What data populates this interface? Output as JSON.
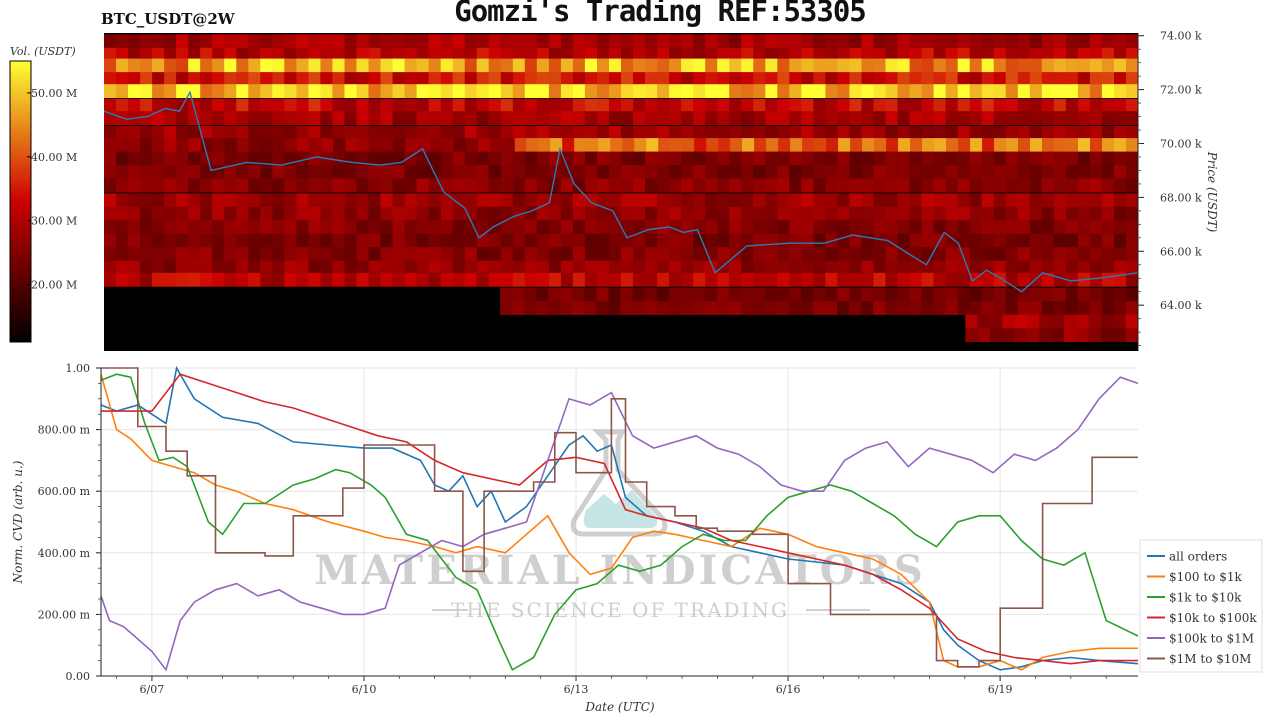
{
  "header": {
    "title": "Gomzi's Trading REF:53305",
    "pair": "BTC_USDT@2W"
  },
  "colors": {
    "heat_low": "#000000",
    "heat_mid": "#cc0000",
    "heat_high": "#ffff33",
    "price_line": "#2b7bba",
    "background": "#ffffff"
  },
  "watermark": {
    "brand": "MATERIAL INDICATORS",
    "tagline": "THE SCIENCE OF TRADING"
  },
  "chart_data": [
    {
      "type": "heatmap",
      "title": "BTC_USDT@2W",
      "colorbar": {
        "label": "Vol. (USDT)",
        "ticks": [
          "20.00 M",
          "30.00 M",
          "40.00 M",
          "50.00 M"
        ],
        "tick_values": [
          20,
          30,
          40,
          50
        ],
        "range": [
          11,
          55
        ]
      },
      "ylabel": "Price (USDT)",
      "yticks": [
        "64.00 k",
        "66.00 k",
        "68.00 k",
        "70.00 k",
        "72.00 k",
        "74.00 k"
      ],
      "ytick_values": [
        64000,
        66000,
        68000,
        70000,
        72000,
        74000
      ],
      "ylim": [
        62300,
        74100
      ],
      "xlim": [
        6.28,
        20.95
      ],
      "heat_bands": [
        {
          "price": 73800,
          "intensity": 0.4,
          "x_from": 6.28,
          "x_to": 20.95
        },
        {
          "price": 73300,
          "intensity": 0.45,
          "x_from": 6.28,
          "x_to": 20.95
        },
        {
          "price": 72900,
          "intensity": 0.82,
          "x_from": 6.28,
          "x_to": 20.95
        },
        {
          "price": 72400,
          "intensity": 0.52,
          "x_from": 6.28,
          "x_to": 20.95
        },
        {
          "price": 71950,
          "intensity": 0.93,
          "x_from": 6.28,
          "x_to": 20.95
        },
        {
          "price": 71400,
          "intensity": 0.48,
          "x_from": 6.28,
          "x_to": 20.95
        },
        {
          "price": 70950,
          "intensity": 0.4,
          "x_from": 6.28,
          "x_to": 20.95
        },
        {
          "price": 70400,
          "intensity": 0.38,
          "x_from": 6.28,
          "x_to": 20.95
        },
        {
          "price": 69950,
          "intensity": 0.7,
          "x_from": 12.1,
          "x_to": 20.95
        },
        {
          "price": 69950,
          "intensity": 0.35,
          "x_from": 6.28,
          "x_to": 12.1
        },
        {
          "price": 69450,
          "intensity": 0.3,
          "x_from": 6.28,
          "x_to": 20.95
        },
        {
          "price": 68950,
          "intensity": 0.3,
          "x_from": 6.28,
          "x_to": 20.95
        },
        {
          "price": 68450,
          "intensity": 0.33,
          "x_from": 6.28,
          "x_to": 20.95
        },
        {
          "price": 67900,
          "intensity": 0.38,
          "x_from": 6.28,
          "x_to": 20.95
        },
        {
          "price": 67400,
          "intensity": 0.35,
          "x_from": 6.28,
          "x_to": 20.95
        },
        {
          "price": 66900,
          "intensity": 0.32,
          "x_from": 6.28,
          "x_to": 20.95
        },
        {
          "price": 66400,
          "intensity": 0.3,
          "x_from": 6.28,
          "x_to": 20.95
        },
        {
          "price": 65900,
          "intensity": 0.32,
          "x_from": 6.28,
          "x_to": 20.95
        },
        {
          "price": 65400,
          "intensity": 0.35,
          "x_from": 6.28,
          "x_to": 20.95
        },
        {
          "price": 64950,
          "intensity": 0.45,
          "x_from": 6.28,
          "x_to": 20.95
        },
        {
          "price": 64400,
          "intensity": 0.28,
          "x_from": 11.9,
          "x_to": 20.95
        },
        {
          "price": 63900,
          "intensity": 0.3,
          "x_from": 11.9,
          "x_to": 20.95
        },
        {
          "price": 63400,
          "intensity": 0.4,
          "x_from": 18.5,
          "x_to": 20.95
        },
        {
          "price": 62900,
          "intensity": 0.35,
          "x_from": 18.5,
          "x_to": 20.95
        }
      ],
      "series": [
        {
          "x": [
            6.28,
            6.6,
            6.9,
            7.15,
            7.35,
            7.5,
            7.8,
            8.3,
            8.8,
            9.3,
            9.8,
            10.2,
            10.5,
            10.8,
            11.1,
            11.4,
            11.6,
            11.8,
            12.1,
            12.35,
            12.6,
            12.75,
            12.95,
            13.2,
            13.5,
            13.7,
            14.0,
            14.3,
            14.5,
            14.7,
            14.95,
            15.4,
            16.0,
            16.5,
            16.9,
            17.4,
            17.7,
            17.95,
            18.2,
            18.4,
            18.6,
            18.8,
            19.0,
            19.3,
            19.6,
            20.0,
            20.4,
            20.95
          ],
          "y": [
            71200,
            70900,
            71000,
            71300,
            71200,
            71900,
            69000,
            69300,
            69200,
            69500,
            69300,
            69200,
            69300,
            69800,
            68200,
            67600,
            66500,
            66900,
            67300,
            67500,
            67800,
            69800,
            68500,
            67800,
            67500,
            66500,
            66800,
            66900,
            66700,
            66800,
            65200,
            66200,
            66300,
            66300,
            66600,
            66400,
            65900,
            65500,
            66700,
            66300,
            64900,
            65300,
            65000,
            64500,
            65200,
            64900,
            65000,
            65200
          ],
          "name": ""
        }
      ]
    },
    {
      "type": "line",
      "ylabel": "Norm. CVD (arb. u.)",
      "xlabel": "Date (UTC)",
      "ylim": [
        0,
        1
      ],
      "xlim": [
        6.28,
        20.95
      ],
      "yticks": [
        "0.00",
        "200.00 m",
        "400.00 m",
        "600.00 m",
        "800.00 m",
        "1.00"
      ],
      "ytick_values": [
        0,
        0.2,
        0.4,
        0.6,
        0.8,
        1.0
      ],
      "xticks": [
        "6/07",
        "6/10",
        "6/13",
        "6/16",
        "6/19"
      ],
      "xtick_values": [
        7,
        10,
        13,
        16,
        19
      ],
      "grid": true,
      "legend_position": "right",
      "series": [
        {
          "name": "all orders",
          "color": "#1f77b4",
          "x": [
            6.28,
            6.5,
            6.8,
            7.0,
            7.2,
            7.35,
            7.6,
            8.0,
            8.5,
            9.0,
            9.5,
            10.0,
            10.4,
            10.8,
            11.0,
            11.2,
            11.4,
            11.6,
            11.8,
            12.0,
            12.3,
            12.6,
            12.9,
            13.1,
            13.3,
            13.5,
            13.7,
            14.0,
            14.4,
            14.8,
            15.2,
            15.6,
            16.0,
            16.4,
            16.8,
            17.2,
            17.6,
            18.0,
            18.2,
            18.4,
            18.7,
            19.0,
            19.3,
            19.6,
            20.0,
            20.4,
            20.95
          ],
          "y": [
            0.88,
            0.86,
            0.88,
            0.85,
            0.82,
            1.0,
            0.9,
            0.84,
            0.82,
            0.76,
            0.75,
            0.74,
            0.74,
            0.7,
            0.62,
            0.6,
            0.65,
            0.55,
            0.6,
            0.5,
            0.55,
            0.65,
            0.75,
            0.78,
            0.73,
            0.75,
            0.58,
            0.52,
            0.5,
            0.47,
            0.42,
            0.4,
            0.38,
            0.37,
            0.36,
            0.33,
            0.3,
            0.24,
            0.15,
            0.1,
            0.05,
            0.02,
            0.03,
            0.05,
            0.06,
            0.05,
            0.04
          ]
        },
        {
          "name": "$100 to $1k",
          "color": "#ff7f0e",
          "x": [
            6.28,
            6.5,
            6.7,
            7.0,
            7.3,
            7.6,
            7.9,
            8.2,
            8.6,
            9.0,
            9.5,
            10.0,
            10.3,
            10.6,
            11.0,
            11.3,
            11.6,
            12.0,
            12.3,
            12.6,
            12.9,
            13.2,
            13.5,
            13.8,
            14.1,
            14.4,
            14.8,
            15.2,
            15.6,
            16.0,
            16.4,
            16.8,
            17.2,
            17.6,
            18.0,
            18.2,
            18.4,
            18.7,
            19.0,
            19.3,
            19.6,
            20.0,
            20.4,
            20.95
          ],
          "y": [
            0.98,
            0.8,
            0.77,
            0.7,
            0.68,
            0.66,
            0.62,
            0.6,
            0.56,
            0.54,
            0.5,
            0.47,
            0.45,
            0.44,
            0.42,
            0.4,
            0.42,
            0.4,
            0.46,
            0.52,
            0.4,
            0.33,
            0.35,
            0.45,
            0.47,
            0.46,
            0.44,
            0.42,
            0.48,
            0.46,
            0.42,
            0.4,
            0.38,
            0.33,
            0.24,
            0.05,
            0.03,
            0.03,
            0.05,
            0.02,
            0.06,
            0.08,
            0.09,
            0.09
          ]
        },
        {
          "name": "$1k to $10k",
          "color": "#2ca02c",
          "x": [
            6.28,
            6.5,
            6.7,
            6.9,
            7.1,
            7.3,
            7.5,
            7.8,
            8.0,
            8.3,
            8.6,
            9.0,
            9.3,
            9.6,
            9.8,
            10.1,
            10.3,
            10.6,
            10.9,
            11.1,
            11.3,
            11.6,
            11.9,
            12.1,
            12.4,
            12.7,
            13.0,
            13.3,
            13.6,
            13.9,
            14.2,
            14.5,
            14.8,
            15.1,
            15.4,
            15.7,
            16.0,
            16.3,
            16.6,
            16.9,
            17.2,
            17.5,
            17.8,
            18.1,
            18.4,
            18.7,
            19.0,
            19.3,
            19.6,
            19.9,
            20.2,
            20.5,
            20.95
          ],
          "y": [
            0.96,
            0.98,
            0.97,
            0.82,
            0.7,
            0.71,
            0.68,
            0.5,
            0.46,
            0.56,
            0.56,
            0.62,
            0.64,
            0.67,
            0.66,
            0.62,
            0.58,
            0.46,
            0.44,
            0.38,
            0.32,
            0.28,
            0.12,
            0.02,
            0.06,
            0.2,
            0.28,
            0.3,
            0.36,
            0.34,
            0.36,
            0.42,
            0.46,
            0.44,
            0.44,
            0.52,
            0.58,
            0.6,
            0.62,
            0.6,
            0.56,
            0.52,
            0.46,
            0.42,
            0.5,
            0.52,
            0.52,
            0.44,
            0.38,
            0.36,
            0.4,
            0.18,
            0.13
          ]
        },
        {
          "name": "$10k to $100k",
          "color": "#d62728",
          "x": [
            6.28,
            6.6,
            7.0,
            7.4,
            7.8,
            8.2,
            8.6,
            9.0,
            9.4,
            9.8,
            10.2,
            10.6,
            11.0,
            11.4,
            11.8,
            12.2,
            12.6,
            13.0,
            13.4,
            13.7,
            14.0,
            14.4,
            14.8,
            15.2,
            15.6,
            16.0,
            16.4,
            16.8,
            17.2,
            17.6,
            18.0,
            18.4,
            18.8,
            19.2,
            19.6,
            20.0,
            20.4,
            20.95
          ],
          "y": [
            0.86,
            0.86,
            0.86,
            0.98,
            0.95,
            0.92,
            0.89,
            0.87,
            0.84,
            0.81,
            0.78,
            0.76,
            0.7,
            0.66,
            0.64,
            0.62,
            0.7,
            0.71,
            0.69,
            0.54,
            0.52,
            0.5,
            0.48,
            0.44,
            0.42,
            0.4,
            0.38,
            0.36,
            0.33,
            0.28,
            0.22,
            0.12,
            0.08,
            0.06,
            0.05,
            0.04,
            0.05,
            0.05
          ]
        },
        {
          "name": "$100k to $1M",
          "color": "#9467bd",
          "x": [
            6.28,
            6.4,
            6.6,
            6.8,
            7.0,
            7.2,
            7.4,
            7.6,
            7.9,
            8.2,
            8.5,
            8.8,
            9.1,
            9.4,
            9.7,
            10.0,
            10.3,
            10.5,
            10.8,
            11.1,
            11.4,
            11.7,
            12.0,
            12.3,
            12.6,
            12.9,
            13.2,
            13.5,
            13.8,
            14.1,
            14.4,
            14.7,
            15.0,
            15.3,
            15.6,
            15.9,
            16.2,
            16.5,
            16.8,
            17.1,
            17.4,
            17.7,
            18.0,
            18.3,
            18.6,
            18.9,
            19.2,
            19.5,
            19.8,
            20.1,
            20.4,
            20.7,
            20.95
          ],
          "y": [
            0.26,
            0.18,
            0.16,
            0.12,
            0.08,
            0.02,
            0.18,
            0.24,
            0.28,
            0.3,
            0.26,
            0.28,
            0.24,
            0.22,
            0.2,
            0.2,
            0.22,
            0.36,
            0.4,
            0.44,
            0.42,
            0.46,
            0.48,
            0.5,
            0.7,
            0.9,
            0.88,
            0.92,
            0.78,
            0.74,
            0.76,
            0.78,
            0.74,
            0.72,
            0.68,
            0.62,
            0.6,
            0.6,
            0.7,
            0.74,
            0.76,
            0.68,
            0.74,
            0.72,
            0.7,
            0.66,
            0.72,
            0.7,
            0.74,
            0.8,
            0.9,
            0.97,
            0.95
          ]
        },
        {
          "name": "$1M to $10M",
          "color": "#8c564b",
          "step": true,
          "x": [
            6.28,
            6.8,
            7.2,
            7.5,
            7.9,
            8.3,
            8.6,
            9.0,
            9.4,
            9.7,
            10.0,
            10.4,
            10.7,
            11.0,
            11.4,
            11.7,
            12.0,
            12.4,
            12.7,
            13.0,
            13.3,
            13.5,
            13.7,
            14.0,
            14.4,
            14.7,
            15.0,
            15.5,
            16.0,
            16.6,
            17.3,
            17.9,
            18.1,
            18.4,
            18.7,
            19.0,
            19.3,
            19.6,
            19.9,
            20.3,
            20.95
          ],
          "y": [
            1.0,
            0.81,
            0.73,
            0.65,
            0.4,
            0.4,
            0.39,
            0.52,
            0.52,
            0.61,
            0.75,
            0.75,
            0.75,
            0.6,
            0.34,
            0.6,
            0.6,
            0.63,
            0.79,
            0.66,
            0.66,
            0.9,
            0.63,
            0.55,
            0.52,
            0.48,
            0.47,
            0.46,
            0.3,
            0.2,
            0.2,
            0.2,
            0.05,
            0.03,
            0.05,
            0.22,
            0.22,
            0.56,
            0.56,
            0.71,
            0.71
          ]
        }
      ]
    }
  ]
}
